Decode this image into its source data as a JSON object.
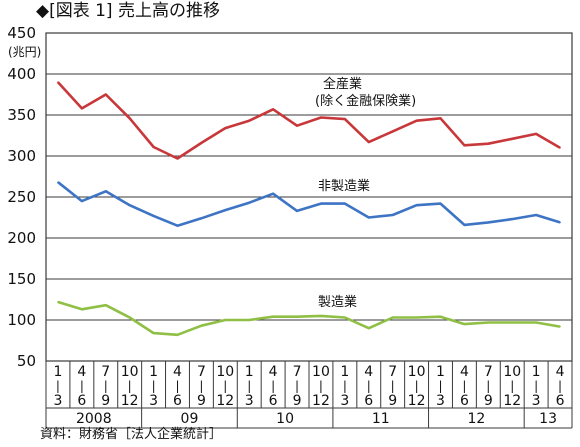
{
  "title": "◆[図表 1] 売上高の推移",
  "source": "資料：財務省［法人企業統計］",
  "chart_data": {
    "type": "line",
    "unit_label": "(兆円)",
    "ylim": [
      50,
      450
    ],
    "yticks": [
      450,
      400,
      350,
      300,
      250,
      200,
      150,
      100,
      50
    ],
    "grid": true,
    "months": [
      "1",
      "4",
      "7",
      "10",
      "1",
      "4",
      "7",
      "10",
      "1",
      "4",
      "7",
      "10",
      "1",
      "4",
      "7",
      "10",
      "1",
      "4",
      "7",
      "10",
      "1",
      "4"
    ],
    "quarter_end": [
      "3",
      "6",
      "9",
      "12",
      "3",
      "6",
      "9",
      "12",
      "3",
      "6",
      "9",
      "12",
      "3",
      "6",
      "9",
      "12",
      "3",
      "6",
      "9",
      "12",
      "3",
      "6"
    ],
    "years": [
      {
        "label": "2008",
        "start": 0,
        "end": 3
      },
      {
        "label": "09",
        "start": 4,
        "end": 7
      },
      {
        "label": "10",
        "start": 8,
        "end": 11
      },
      {
        "label": "11",
        "start": 12,
        "end": 15
      },
      {
        "label": "12",
        "start": 16,
        "end": 19
      },
      {
        "label": "13",
        "start": 20,
        "end": 21
      }
    ],
    "series": [
      {
        "name": "全産業（除く金融保険業）",
        "name_lines": [
          "全産業",
          "(除く金融保険業)"
        ],
        "color": "#c8373a",
        "values": [
          390,
          358,
          375,
          346,
          311,
          297,
          316,
          334,
          343,
          357,
          337,
          347,
          345,
          317,
          330,
          343,
          346,
          313,
          315,
          321,
          327,
          310
        ]
      },
      {
        "name": "非製造業",
        "name_lines": [
          "非製造業"
        ],
        "color": "#3d74c4",
        "values": [
          268,
          245,
          257,
          240,
          227,
          215,
          224,
          234,
          243,
          254,
          233,
          242,
          242,
          225,
          228,
          240,
          242,
          216,
          219,
          223,
          228,
          219
        ]
      },
      {
        "name": "製造業",
        "name_lines": [
          "製造業"
        ],
        "color": "#8fbf45",
        "values": [
          122,
          113,
          118,
          103,
          84,
          82,
          93,
          100,
          100,
          104,
          104,
          105,
          103,
          90,
          103,
          103,
          104,
          95,
          97,
          97,
          97,
          92
        ]
      }
    ]
  }
}
